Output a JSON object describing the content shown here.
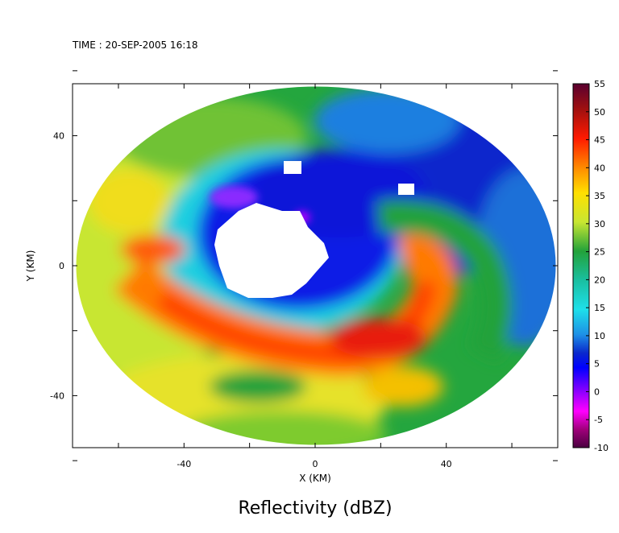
{
  "time_label": "TIME : 20-SEP-2005 16:18",
  "chart_data": {
    "type": "heatmap",
    "title": "Reflectivity (dBZ)",
    "xlabel": "X (KM)",
    "ylabel": "Y (KM)",
    "xlim": [
      -74,
      74
    ],
    "ylim": [
      -56,
      56
    ],
    "xticks": [
      -40,
      0,
      40
    ],
    "yticks": [
      40,
      0,
      -40
    ],
    "x_minor_ticks": [
      -60,
      -20,
      20,
      60
    ],
    "y_minor_ticks": [
      60,
      20,
      -20,
      -60
    ],
    "colorbar": {
      "min": -10,
      "max": 55,
      "step": 5,
      "tick_labels": [
        "55",
        "50",
        "45",
        "40",
        "35",
        "30",
        "25",
        "20",
        "15",
        "10",
        "5",
        "0",
        "-5",
        "-10"
      ],
      "colors": [
        "#5a0030",
        "#8e0e1a",
        "#c81010",
        "#ff2a00",
        "#ff7a00",
        "#ffb400",
        "#f4e000",
        "#c8e632",
        "#7ecb2e",
        "#23a23a",
        "#1abf9a",
        "#1fe0e6",
        "#1e8fe6",
        "#0a28cc",
        "#0000ff",
        "#8000ff",
        "#e000e6",
        "#c000a0",
        "#7a007a",
        "#4a0040"
      ]
    },
    "radar_domain": {
      "center_x": 0,
      "center_y": 0,
      "radius_x": 74,
      "radius_y": 55
    },
    "features": {
      "eye_no_data_center": [
        -12,
        3
      ],
      "eyewall_max_dbz": 45,
      "inner_band_dbz": 10,
      "outer_rainband_dbz": 35
    }
  }
}
